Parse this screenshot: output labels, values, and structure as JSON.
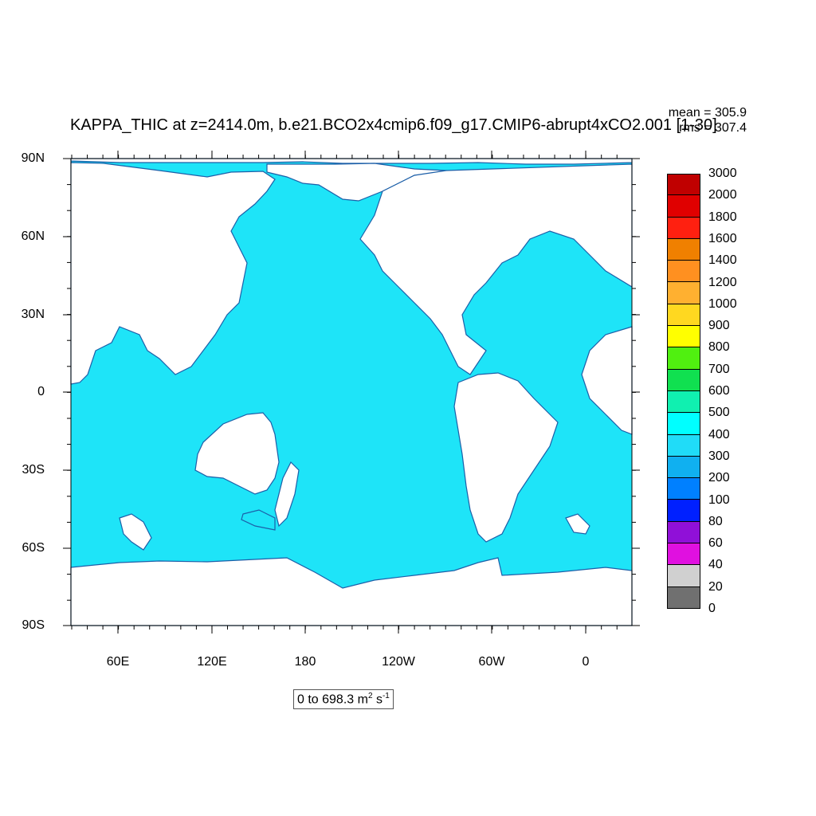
{
  "title": "KAPPA_THIC at z=2414.0m, b.e21.BCO2x4cmip6.f09_g17.CMIP6-abrupt4xCO2.001 [1-30]",
  "stats": {
    "mean": "mean = 305.9",
    "rms": "rms = 307.4"
  },
  "range_label": {
    "text": "0 to 698.3 m",
    "sup1": "2",
    "mid": " s",
    "sup2": "-1"
  },
  "axes": {
    "lat_labels": [
      "90N",
      "60N",
      "30N",
      "0",
      "30S",
      "60S",
      "90S"
    ],
    "lon_labels": [
      "60E",
      "120E",
      "180",
      "120W",
      "60W",
      "0"
    ]
  },
  "colors": {
    "ocean": "#1ee4f8",
    "land": "#ffffff",
    "coast": "#1c5fa8"
  },
  "legend": {
    "levels": [
      "3000",
      "2000",
      "1800",
      "1600",
      "1400",
      "1200",
      "1000",
      "900",
      "800",
      "700",
      "600",
      "500",
      "400",
      "300",
      "200",
      "100",
      "80",
      "60",
      "40",
      "20",
      "0"
    ],
    "colors": [
      "#c00000",
      "#e00000",
      "#ff2010",
      "#f08000",
      "#ff9020",
      "#ffb030",
      "#ffd820",
      "#ffff00",
      "#50f010",
      "#10e050",
      "#10f0b0",
      "#00ffff",
      "#20dcf8",
      "#10b0f0",
      "#0080ff",
      "#0020ff",
      "#9010d8",
      "#e010e0",
      "#d0d0d0",
      "#707070"
    ]
  },
  "chart_data": {
    "type": "heatmap",
    "variable": "KAPPA_THIC",
    "depth": "z=2414.0m",
    "case": "b.e21.BCO2x4cmip6.f09_g17.CMIP6-abrupt4xCO2.001",
    "years": "[1-30]",
    "units": "m2 s-1",
    "min": 0,
    "max": 698.3,
    "mean": 305.9,
    "rms": 307.4,
    "xlim": [
      "20W",
      "20E wrapped (central longitude 200W)"
    ],
    "ylim": [
      -90,
      90
    ],
    "dominant_color_level": "300-400",
    "grid": false
  }
}
